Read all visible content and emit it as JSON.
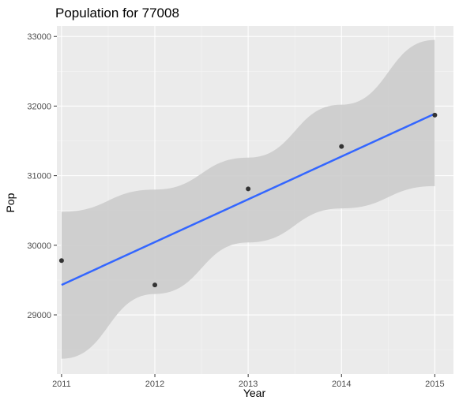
{
  "chart_data": {
    "type": "scatter",
    "title": "Population for 77008",
    "xlabel": "Year",
    "ylabel": "Pop",
    "xlim": [
      2010.95,
      2015.2
    ],
    "ylim": [
      28150,
      33150
    ],
    "x_ticks": [
      2011,
      2012,
      2013,
      2014,
      2015
    ],
    "y_ticks": [
      29000,
      30000,
      31000,
      32000,
      33000
    ],
    "grid": true,
    "legend": "none",
    "points": [
      {
        "x": 2011,
        "y": 29780
      },
      {
        "x": 2012,
        "y": 29430
      },
      {
        "x": 2013,
        "y": 30810
      },
      {
        "x": 2014,
        "y": 31420
      },
      {
        "x": 2015,
        "y": 31870
      }
    ],
    "fit_line": {
      "method": "linear",
      "start": {
        "x": 2011,
        "y": 29430
      },
      "end": {
        "x": 2015,
        "y": 31890
      },
      "band_upper": [
        {
          "x": 2011,
          "y": 30480
        },
        {
          "x": 2012,
          "y": 30800
        },
        {
          "x": 2013,
          "y": 31260
        },
        {
          "x": 2014,
          "y": 32020
        },
        {
          "x": 2015,
          "y": 32950
        }
      ],
      "band_lower": [
        {
          "x": 2011,
          "y": 28370
        },
        {
          "x": 2012,
          "y": 29300
        },
        {
          "x": 2013,
          "y": 30040
        },
        {
          "x": 2014,
          "y": 30530
        },
        {
          "x": 2015,
          "y": 30850
        }
      ]
    },
    "colors": {
      "panel": "#ebebeb",
      "grid_major": "#ffffff",
      "grid_minor": "#f5f5f5",
      "points": "#333333",
      "fit_line": "#3366ff",
      "band": "#cccccc"
    }
  }
}
